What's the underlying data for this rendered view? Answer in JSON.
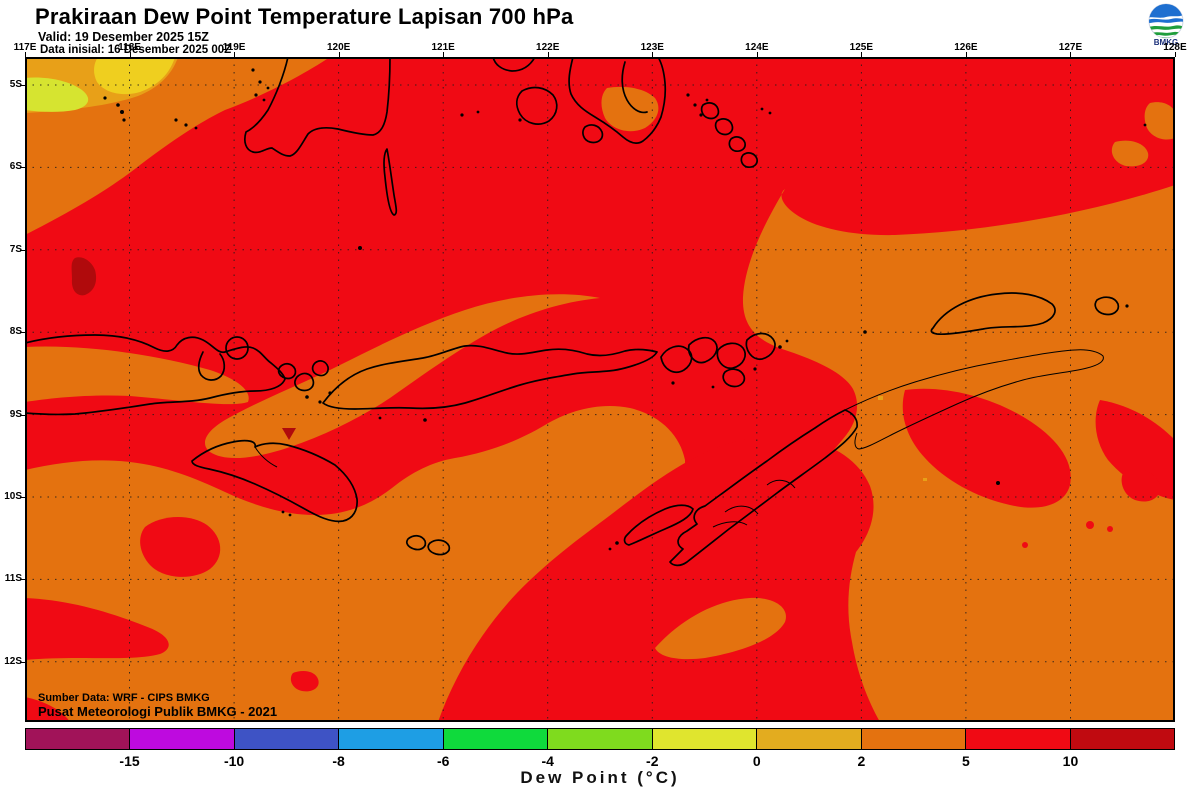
{
  "header": {
    "title": "Prakiraan Dew Point Temperature Lapisan 700 hPa",
    "valid_line": "Valid: 19 Desember 2025 15Z",
    "init_line": "Data inisial: 16 Desember 2025 00Z"
  },
  "logo": {
    "label": "BMKG"
  },
  "map": {
    "lon_labels": [
      "117E",
      "118E",
      "119E",
      "120E",
      "121E",
      "122E",
      "123E",
      "124E",
      "125E",
      "126E",
      "127E",
      "128E"
    ],
    "lat_labels": [
      "5S",
      "6S",
      "7S",
      "8S",
      "9S",
      "10S",
      "11S",
      "12S"
    ]
  },
  "credits": {
    "line1": "Sumber Data: WRF - CIPS BMKG",
    "line2": "Pusat Meteorologi Publik BMKG -  2021"
  },
  "colorbar": {
    "title": "Dew Point (°C)",
    "units": "°C",
    "tick_labels": [
      "-15",
      "-10",
      "-8",
      "-6",
      "-4",
      "-2",
      "0",
      "2",
      "5",
      "10"
    ],
    "cell_colors": [
      "#A11359",
      "#BE0ADF",
      "#3E53C5",
      "#1E9EE4",
      "#0FDA3C",
      "#7FDB1E",
      "#E0E52E",
      "#E3AC1F",
      "#E4720F",
      "#F00A14",
      "#C00A10"
    ]
  },
  "colors": {
    "c-red": "#F00A14",
    "c-orange": "#E4720F",
    "c-darkred": "#B00A0C",
    "c-amber": "#E8A018",
    "c-yellow": "#EFCF1F",
    "c-ygreen": "#D6E430",
    "c-coast": "#000000",
    "c-navy": "#1a2f7a"
  }
}
